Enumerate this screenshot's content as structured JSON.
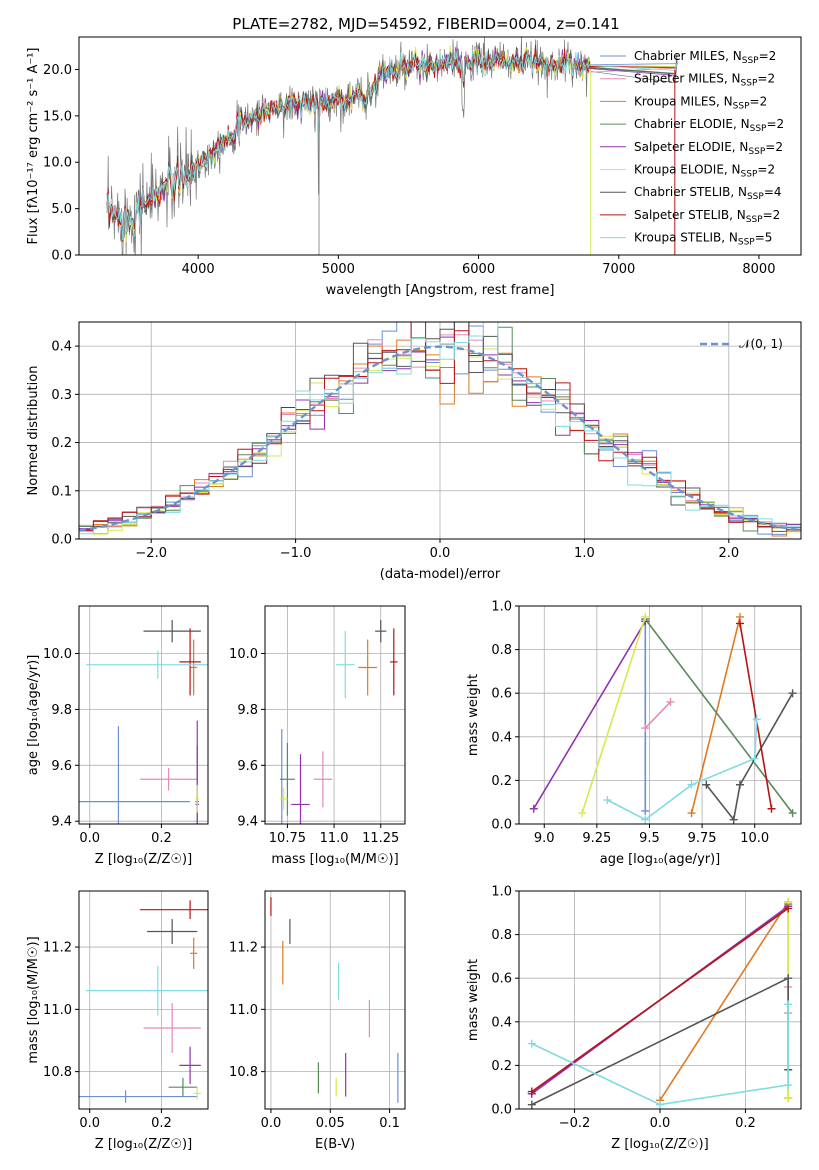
{
  "title": "PLATE=2782, MJD=54592, FIBERID=0004, z=0.141",
  "legend_entries": [
    {
      "name": "Chabrier MILES",
      "nssp": "2",
      "color": "#6a8fd6"
    },
    {
      "name": "Salpeter MILES",
      "nssp": "2",
      "color": "#e58bb6"
    },
    {
      "name": "Kroupa MILES",
      "nssp": "2",
      "color": "#e07b24"
    },
    {
      "name": "Chabrier ELODIE",
      "nssp": "2",
      "color": "#5a8a5a"
    },
    {
      "name": "Salpeter ELODIE",
      "nssp": "2",
      "color": "#9433b1"
    },
    {
      "name": "Kroupa ELODIE",
      "nssp": "2",
      "color": "#d6ea50"
    },
    {
      "name": "Chabrier STELIB",
      "nssp": "4",
      "color": "#555555"
    },
    {
      "name": "Salpeter STELIB",
      "nssp": "2",
      "color": "#b81414"
    },
    {
      "name": "Kroupa STELIB",
      "nssp": "5",
      "color": "#80dbe2"
    }
  ],
  "chart_data": [
    {
      "id": "spectrum",
      "type": "line",
      "xlabel": "wavelength [Angstrom, rest frame]",
      "ylabel": "Flux [fλ10⁻¹⁷ erg cm⁻² s⁻¹ A⁻¹]",
      "xlim": [
        3150,
        8300
      ],
      "ylim": [
        0,
        23.5
      ],
      "xticks": [
        4000,
        5000,
        6000,
        7000,
        8000
      ],
      "yticks": [
        0,
        5,
        10,
        15,
        20
      ],
      "grid": false,
      "legend_position": "right",
      "continuum": {
        "x": [
          3350,
          3500,
          3600,
          3700,
          3800,
          3900,
          4000,
          4100,
          4200,
          4300,
          4400,
          4500,
          4600,
          4700,
          4800,
          4900,
          5000,
          5100,
          5200,
          5300,
          5500,
          5700,
          5900,
          6100,
          6300,
          6500,
          6700,
          6900,
          7000,
          7200,
          7400
        ],
        "y": [
          4.2,
          4.0,
          5.5,
          6.5,
          7.5,
          8.5,
          9.5,
          11.0,
          12.5,
          14.0,
          15.0,
          15.8,
          16.0,
          16.2,
          16.3,
          16.5,
          16.6,
          16.9,
          17.2,
          19.5,
          20.2,
          20.5,
          20.8,
          21.0,
          20.8,
          20.6,
          20.5,
          20.3,
          20.2,
          20.1,
          20.0
        ]
      },
      "data_gap": [
        6800,
        7400
      ],
      "series_note": "observed spectrum and 9 model fits"
    },
    {
      "id": "residuals",
      "type": "line",
      "xlabel": "(data-model)/error",
      "ylabel": "Normed distribution",
      "xlim": [
        -2.5,
        2.5
      ],
      "ylim": [
        0,
        0.45
      ],
      "xticks": [
        -2,
        -1,
        0,
        1,
        2
      ],
      "yticks": [
        0.0,
        0.1,
        0.2,
        0.3,
        0.4
      ],
      "grid": true,
      "legend": "𝒩(0, 1)",
      "legend_position": "top-right",
      "bins": 50
    },
    {
      "id": "age-vs-Z",
      "type": "scatter",
      "xlabel": "Z [log₁₀(Z/Z☉)]",
      "ylabel": "age  [log₁₀(age/yr)]",
      "xlim": [
        -0.03,
        0.33
      ],
      "ylim": [
        9.39,
        10.17
      ],
      "xticks": [
        0.0,
        0.2
      ],
      "yticks": [
        9.4,
        9.6,
        9.8,
        10.0
      ],
      "grid": true,
      "points": [
        {
          "x": 0.08,
          "y": 9.47,
          "xerr": 0.2,
          "yerr": 0.27,
          "color": "#6a8fd6"
        },
        {
          "x": 0.22,
          "y": 9.55,
          "xerr": 0.08,
          "yerr": 0.04,
          "color": "#e58bb6"
        },
        {
          "x": 0.29,
          "y": 9.95,
          "xerr": 0.01,
          "yerr": 0.1,
          "color": "#e07b24"
        },
        {
          "x": 0.3,
          "y": 9.47,
          "xerr": 0.005,
          "yerr": 0.2,
          "color": "#5a8a5a"
        },
        {
          "x": 0.3,
          "y": 9.46,
          "xerr": 0.005,
          "yerr": 0.3,
          "color": "#9433b1"
        },
        {
          "x": 0.3,
          "y": 9.48,
          "xerr": 0.005,
          "yerr": 0.05,
          "color": "#d6ea50"
        },
        {
          "x": 0.23,
          "y": 10.08,
          "xerr": 0.08,
          "yerr": 0.04,
          "color": "#555555"
        },
        {
          "x": 0.28,
          "y": 9.97,
          "xerr": 0.03,
          "yerr": 0.12,
          "color": "#b81414"
        },
        {
          "x": 0.19,
          "y": 9.96,
          "xerr": 0.2,
          "yerr": 0.05,
          "color": "#80dbe2"
        }
      ]
    },
    {
      "id": "age-vs-mass",
      "type": "scatter",
      "xlabel": "mass [log₁₀(M/M☉)]",
      "ylabel": "",
      "xlim": [
        10.63,
        11.38
      ],
      "ylim": [
        9.39,
        10.17
      ],
      "xticks": [
        10.75,
        11.0,
        11.25
      ],
      "yticks": [
        9.4,
        9.6,
        9.8,
        10.0
      ],
      "grid": true,
      "points": [
        {
          "x": 10.72,
          "y": 9.47,
          "xerr": 0.003,
          "yerr": 0.26,
          "color": "#6a8fd6"
        },
        {
          "x": 10.94,
          "y": 9.55,
          "xerr": 0.05,
          "yerr": 0.1,
          "color": "#e58bb6"
        },
        {
          "x": 11.18,
          "y": 9.95,
          "xerr": 0.05,
          "yerr": 0.1,
          "color": "#e07b24"
        },
        {
          "x": 10.75,
          "y": 9.55,
          "xerr": 0.04,
          "yerr": 0.13,
          "color": "#5a8a5a"
        },
        {
          "x": 10.82,
          "y": 9.46,
          "xerr": 0.05,
          "yerr": 0.18,
          "color": "#9433b1"
        },
        {
          "x": 10.73,
          "y": 9.48,
          "xerr": 0.02,
          "yerr": 0.04,
          "color": "#d6ea50"
        },
        {
          "x": 11.25,
          "y": 10.08,
          "xerr": 0.03,
          "yerr": 0.04,
          "color": "#555555"
        },
        {
          "x": 11.32,
          "y": 9.97,
          "xerr": 0.02,
          "yerr": 0.12,
          "color": "#b81414"
        },
        {
          "x": 11.06,
          "y": 9.96,
          "xerr": 0.05,
          "yerr": 0.12,
          "color": "#80dbe2"
        }
      ]
    },
    {
      "id": "mass-weight-vs-age",
      "type": "line",
      "xlabel": "age  [log₁₀(age/yr)]",
      "ylabel": "mass weight",
      "xlim": [
        8.88,
        10.22
      ],
      "ylim": [
        0,
        1.0
      ],
      "xticks": [
        9.0,
        9.25,
        9.5,
        9.75,
        10.0
      ],
      "yticks": [
        0.0,
        0.2,
        0.4,
        0.6,
        0.8,
        1.0
      ],
      "grid": true,
      "series": [
        {
          "color": "#6a8fd6",
          "x": [
            9.48,
            9.48
          ],
          "y": [
            0.94,
            0.06
          ]
        },
        {
          "color": "#e58bb6",
          "x": [
            9.48,
            9.6
          ],
          "y": [
            0.44,
            0.56
          ]
        },
        {
          "color": "#e07b24",
          "x": [
            9.7,
            9.93
          ],
          "y": [
            0.05,
            0.95
          ]
        },
        {
          "color": "#5a8a5a",
          "x": [
            9.48,
            10.18
          ],
          "y": [
            0.94,
            0.05
          ]
        },
        {
          "color": "#9433b1",
          "x": [
            8.95,
            9.48
          ],
          "y": [
            0.07,
            0.93
          ]
        },
        {
          "color": "#d6ea50",
          "x": [
            9.18,
            9.48
          ],
          "y": [
            0.05,
            0.95
          ]
        },
        {
          "color": "#555555",
          "x": [
            9.77,
            9.9,
            9.93,
            10.18
          ],
          "y": [
            0.18,
            0.02,
            0.18,
            0.6
          ]
        },
        {
          "color": "#b81414",
          "x": [
            9.93,
            10.08
          ],
          "y": [
            0.92,
            0.07
          ]
        },
        {
          "color": "#80dbe2",
          "x": [
            9.3,
            9.48,
            9.7,
            10.0,
            10.01
          ],
          "y": [
            0.11,
            0.02,
            0.18,
            0.3,
            0.48
          ]
        }
      ]
    },
    {
      "id": "mass-vs-Z",
      "type": "scatter",
      "xlabel": "Z [log₁₀(Z/Z☉)]",
      "ylabel": "mass [log₁₀(M/M☉)]",
      "xlim": [
        -0.03,
        0.33
      ],
      "ylim": [
        10.68,
        11.38
      ],
      "xticks": [
        0.0,
        0.2
      ],
      "yticks": [
        10.8,
        11.0,
        11.2
      ],
      "grid": true,
      "points": [
        {
          "x": 0.1,
          "y": 10.72,
          "xerr": 0.2,
          "yerr": 0.02,
          "color": "#6a8fd6"
        },
        {
          "x": 0.23,
          "y": 10.94,
          "xerr": 0.08,
          "yerr": 0.08,
          "color": "#e58bb6"
        },
        {
          "x": 0.29,
          "y": 11.18,
          "xerr": 0.01,
          "yerr": 0.05,
          "color": "#e07b24"
        },
        {
          "x": 0.26,
          "y": 10.75,
          "xerr": 0.04,
          "yerr": 0.03,
          "color": "#5a8a5a"
        },
        {
          "x": 0.28,
          "y": 10.82,
          "xerr": 0.03,
          "yerr": 0.06,
          "color": "#9433b1"
        },
        {
          "x": 0.3,
          "y": 10.73,
          "xerr": 0.01,
          "yerr": 0.02,
          "color": "#d6ea50"
        },
        {
          "x": 0.23,
          "y": 11.25,
          "xerr": 0.07,
          "yerr": 0.04,
          "color": "#555555"
        },
        {
          "x": 0.28,
          "y": 11.32,
          "xerr": 0.14,
          "yerr": 0.03,
          "color": "#b81414"
        },
        {
          "x": 0.19,
          "y": 11.06,
          "xerr": 0.2,
          "yerr": 0.08,
          "color": "#80dbe2"
        }
      ]
    },
    {
      "id": "mass-vs-EBV",
      "type": "scatter",
      "xlabel": "E(B-V)",
      "ylabel": "",
      "xlim": [
        -0.005,
        0.113
      ],
      "ylim": [
        10.68,
        11.38
      ],
      "xticks": [
        0.0,
        0.05,
        0.1
      ],
      "yticks": [
        10.8,
        11.0,
        11.2
      ],
      "grid": true,
      "points": [
        {
          "x": 0.107,
          "y": 10.78,
          "yerr": 0.08,
          "color": "#6a8fd6"
        },
        {
          "x": 0.083,
          "y": 10.97,
          "yerr": 0.06,
          "color": "#e58bb6"
        },
        {
          "x": 0.01,
          "y": 11.15,
          "yerr": 0.07,
          "color": "#e07b24"
        },
        {
          "x": 0.04,
          "y": 10.78,
          "yerr": 0.05,
          "color": "#5a8a5a"
        },
        {
          "x": 0.063,
          "y": 10.79,
          "yerr": 0.07,
          "color": "#9433b1"
        },
        {
          "x": 0.055,
          "y": 10.75,
          "yerr": 0.03,
          "color": "#d6ea50"
        },
        {
          "x": 0.016,
          "y": 11.25,
          "yerr": 0.04,
          "color": "#555555"
        },
        {
          "x": 0.0,
          "y": 11.33,
          "yerr": 0.03,
          "color": "#b81414"
        },
        {
          "x": 0.057,
          "y": 11.09,
          "yerr": 0.06,
          "color": "#80dbe2"
        }
      ]
    },
    {
      "id": "mass-weight-vs-Z",
      "type": "line",
      "xlabel": "Z [log₁₀(Z/Z☉)]",
      "ylabel": "mass weight",
      "xlim": [
        -0.33,
        0.33
      ],
      "ylim": [
        0,
        1.0
      ],
      "xticks": [
        -0.2,
        0.0,
        0.2
      ],
      "yticks": [
        0.0,
        0.2,
        0.4,
        0.6,
        0.8,
        1.0
      ],
      "grid": true,
      "series": [
        {
          "color": "#6a8fd6",
          "x": [
            -0.3,
            0.3
          ],
          "y": [
            0.07,
            0.93
          ]
        },
        {
          "color": "#e58bb6",
          "x": [
            0.3,
            0.3
          ],
          "y": [
            0.44,
            0.56
          ]
        },
        {
          "color": "#e07b24",
          "x": [
            0.0,
            0.3
          ],
          "y": [
            0.04,
            0.95
          ]
        },
        {
          "color": "#5a8a5a",
          "x": [
            0.3,
            0.3
          ],
          "y": [
            0.05,
            0.94
          ]
        },
        {
          "color": "#9433b1",
          "x": [
            -0.3,
            0.3
          ],
          "y": [
            0.07,
            0.93
          ]
        },
        {
          "color": "#d6ea50",
          "x": [
            0.3,
            0.3
          ],
          "y": [
            0.05,
            0.95
          ]
        },
        {
          "color": "#555555",
          "x": [
            -0.3,
            0.3,
            0.3
          ],
          "y": [
            0.02,
            0.6,
            0.18
          ]
        },
        {
          "color": "#b81414",
          "x": [
            -0.3,
            0.3
          ],
          "y": [
            0.08,
            0.92
          ]
        },
        {
          "color": "#80dbe2",
          "x": [
            -0.3,
            0.0,
            0.3,
            0.3
          ],
          "y": [
            0.3,
            0.02,
            0.11,
            0.48
          ]
        }
      ]
    }
  ]
}
